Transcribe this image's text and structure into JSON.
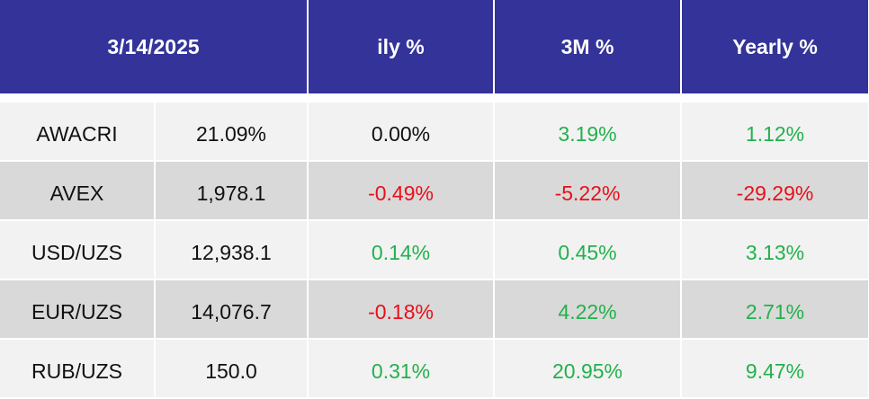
{
  "header": {
    "date": "3/14/2025",
    "col_daily": "ily %",
    "col_3m": "3M %",
    "col_yearly": "Yearly %"
  },
  "colors": {
    "header_bg": "#333399",
    "positive": "#22b14c",
    "negative": "#e8101a",
    "row_light": "#f2f2f2",
    "row_dark": "#d9d9d9"
  },
  "rows": [
    {
      "name": "AWACRI",
      "value": "21.09%",
      "daily": "0.00%",
      "three_m": "3.19%",
      "yearly": "1.12%"
    },
    {
      "name": "AVEX",
      "value": "1,978.1",
      "daily": "-0.49%",
      "three_m": "-5.22%",
      "yearly": "-29.29%"
    },
    {
      "name": "USD/UZS",
      "value": "12,938.1",
      "daily": "0.14%",
      "three_m": "0.45%",
      "yearly": "3.13%"
    },
    {
      "name": "EUR/UZS",
      "value": "14,076.7",
      "daily": "-0.18%",
      "three_m": "4.22%",
      "yearly": "2.71%"
    },
    {
      "name": "RUB/UZS",
      "value": "150.0",
      "daily": "0.31%",
      "three_m": "20.95%",
      "yearly": "9.47%"
    }
  ]
}
